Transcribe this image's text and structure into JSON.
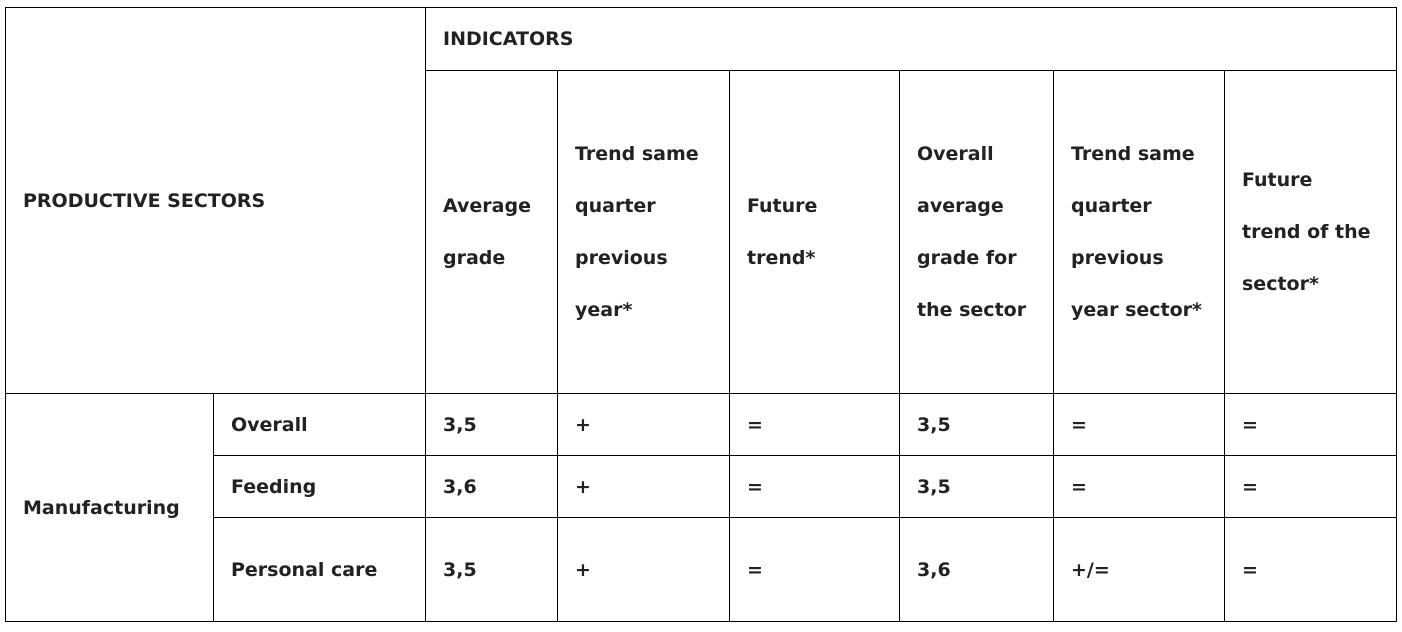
{
  "header": {
    "corner": "PRODUCTIVE SECTORS",
    "group": "INDICATORS",
    "columns": [
      "Average grade",
      "Trend same quarter previous year*",
      "Future trend*",
      "Overall average grade for the sector",
      "Trend same quarter previous year sector*",
      "Future trend of the sector*"
    ]
  },
  "table": {
    "sector": "Manufacturing",
    "rows": [
      {
        "name": "Overall",
        "values": [
          "3,5",
          "+",
          "=",
          "3,5",
          "=",
          "="
        ]
      },
      {
        "name": "Feeding",
        "values": [
          "3,6",
          "+",
          "=",
          "3,5",
          "=",
          "="
        ]
      },
      {
        "name": "Personal care",
        "values": [
          "3,5",
          "+",
          "=",
          "3,6",
          "+/=",
          "="
        ]
      }
    ]
  }
}
